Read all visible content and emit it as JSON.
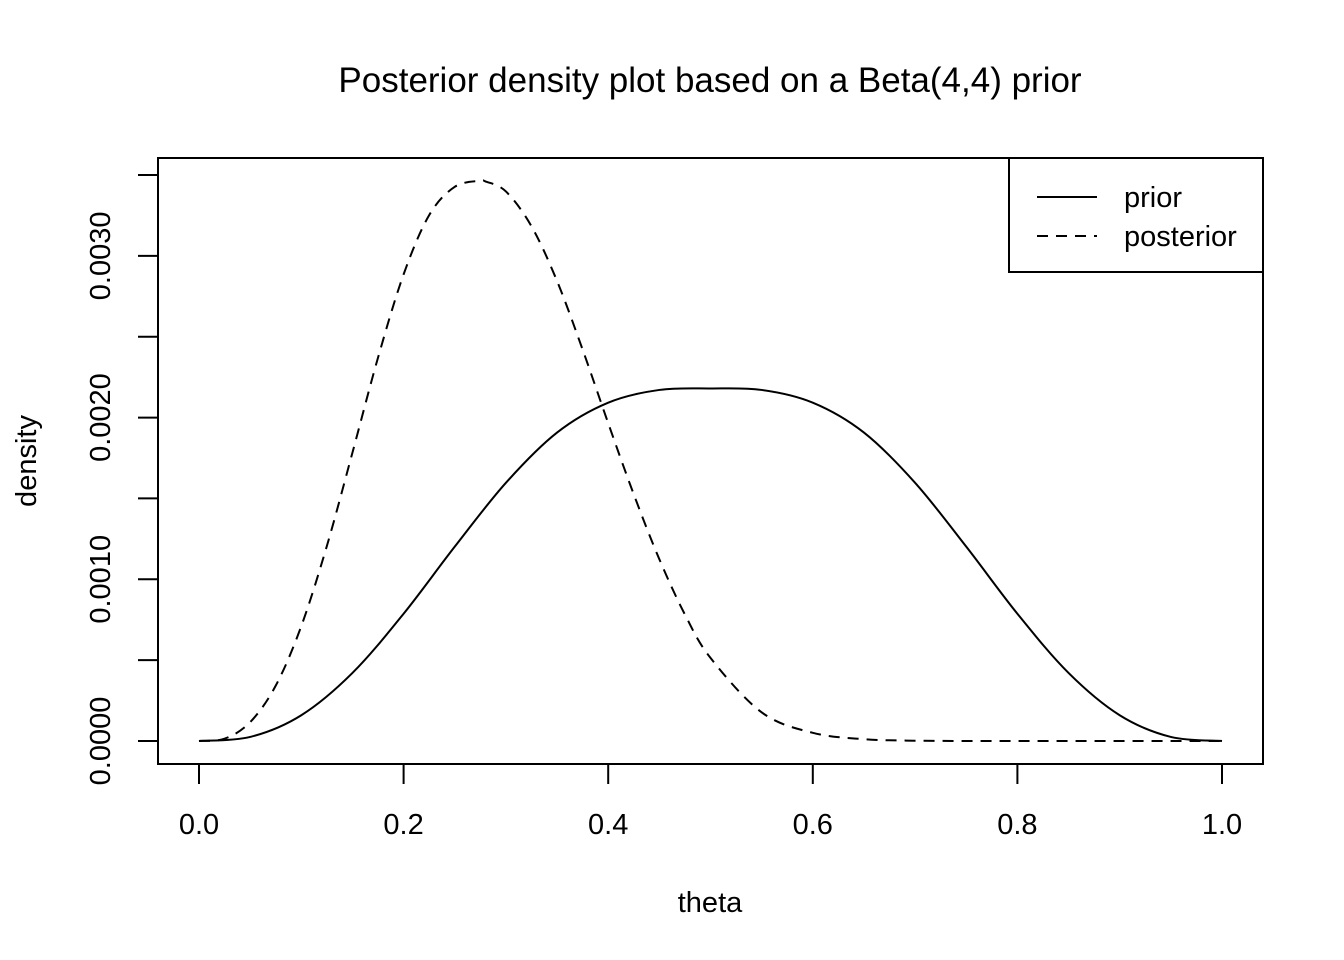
{
  "chart_data": {
    "type": "line",
    "title": "Posterior density plot based on a Beta(4,4) prior",
    "xlabel": "theta",
    "ylabel": "density",
    "xlim": [
      0.0,
      1.0
    ],
    "ylim": [
      0.0,
      0.0035
    ],
    "x_ticks": [
      0.0,
      0.2,
      0.4,
      0.6,
      0.8,
      1.0
    ],
    "x_tick_labels": [
      "0.0",
      "0.2",
      "0.4",
      "0.6",
      "0.8",
      "1.0"
    ],
    "y_ticks": [
      0.0,
      0.0005,
      0.001,
      0.0015,
      0.002,
      0.0025,
      0.003,
      0.0035
    ],
    "y_tick_labels": [
      "0.0000",
      "",
      "0.0010",
      "",
      "0.0020",
      "",
      "0.0030",
      ""
    ],
    "grid": false,
    "legend_position": "top-right",
    "series": [
      {
        "name": "prior",
        "line_style": "solid",
        "color": "#000000",
        "x": [
          0.0,
          0.05,
          0.1,
          0.15,
          0.2,
          0.25,
          0.3,
          0.35,
          0.4,
          0.45,
          0.5,
          0.55,
          0.6,
          0.65,
          0.7,
          0.75,
          0.8,
          0.85,
          0.9,
          0.95,
          1.0
        ],
        "y": [
          0.0,
          2.52e-05,
          0.0001594,
          0.0004208,
          0.0007869,
          0.0012017,
          0.0015965,
          0.0019074,
          0.0020922,
          0.0021709,
          0.00218,
          0.0021709,
          0.0020922,
          0.0019074,
          0.0015965,
          0.0012017,
          0.0007869,
          0.0004208,
          0.0001594,
          2.52e-05,
          0.0
        ]
      },
      {
        "name": "posterior",
        "line_style": "dashed",
        "color": "#000000",
        "x": [
          0.0,
          0.025,
          0.05,
          0.075,
          0.1,
          0.125,
          0.15,
          0.175,
          0.2,
          0.225,
          0.25,
          0.275,
          0.28,
          0.3,
          0.325,
          0.35,
          0.375,
          0.4,
          0.425,
          0.45,
          0.475,
          0.5,
          0.55,
          0.6,
          0.65,
          0.7,
          0.75,
          0.8,
          0.85,
          0.9,
          0.95,
          1.0
        ],
        "y": [
          0.0,
          1.45e-05,
          0.0001166,
          0.0003423,
          0.0007105,
          0.0012063,
          0.0017833,
          0.0023706,
          0.0028855,
          0.0032517,
          0.0034268,
          0.0034645,
          0.00346,
          0.0033982,
          0.0031828,
          0.0028443,
          0.0024202,
          0.0019653,
          0.0015253,
          0.0011241,
          0.0007822,
          0.0005139,
          0.0001772,
          5.06e-05,
          1.13e-05,
          1.9e-06,
          2e-07,
          0.0,
          0.0,
          0.0,
          0.0,
          0.0
        ]
      }
    ]
  }
}
